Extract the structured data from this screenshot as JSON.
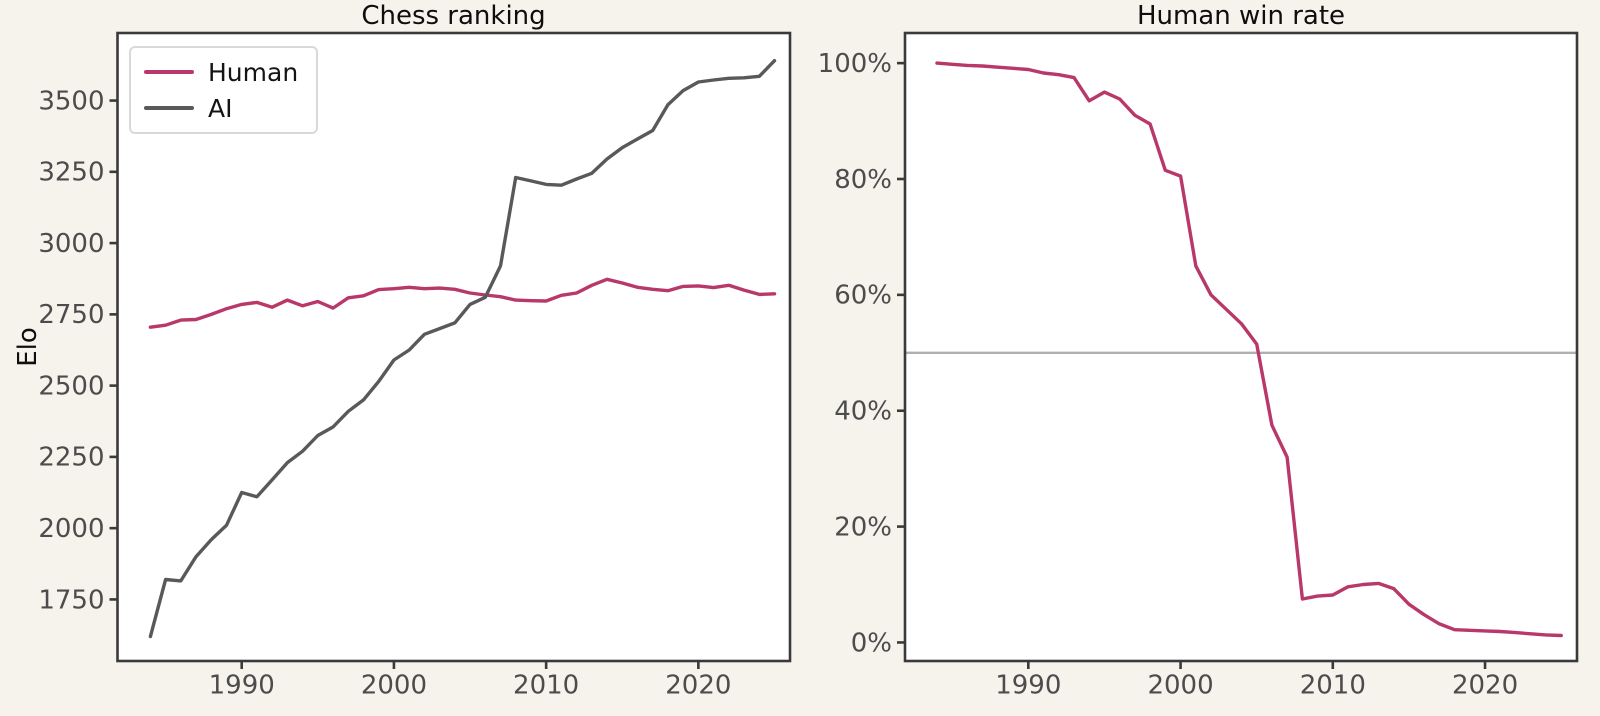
{
  "figure": {
    "background_color": "#f6f3ed",
    "plot_background_color": "#ffffff",
    "spine_color": "#3a3a3a",
    "tick_color": "#3a3a3a",
    "tick_label_color": "#4c4c4c",
    "title_color": "#0e0e0e",
    "legend": {
      "entries": [
        "Human",
        "AI"
      ],
      "text_color": "#141414",
      "border_color": "#d9d9d9",
      "background": "#ffffff",
      "position": "upper-left"
    }
  },
  "chart_data": [
    {
      "type": "line",
      "title": "Chess ranking",
      "xlabel": "",
      "ylabel": "Elo",
      "x": [
        1984,
        1985,
        1986,
        1987,
        1988,
        1989,
        1990,
        1991,
        1992,
        1993,
        1994,
        1995,
        1996,
        1997,
        1998,
        1999,
        2000,
        2001,
        2002,
        2003,
        2004,
        2005,
        2006,
        2007,
        2008,
        2009,
        2010,
        2011,
        2012,
        2013,
        2014,
        2015,
        2016,
        2017,
        2018,
        2019,
        2020,
        2021,
        2022,
        2023,
        2024,
        2025
      ],
      "series": [
        {
          "name": "Human",
          "color": "#b8386a",
          "values": [
            2705,
            2712,
            2730,
            2732,
            2750,
            2770,
            2785,
            2792,
            2775,
            2800,
            2780,
            2795,
            2772,
            2808,
            2815,
            2837,
            2840,
            2845,
            2840,
            2842,
            2838,
            2825,
            2818,
            2812,
            2800,
            2798,
            2797,
            2817,
            2825,
            2852,
            2873,
            2860,
            2845,
            2838,
            2833,
            2848,
            2850,
            2844,
            2852,
            2835,
            2820,
            2822
          ]
        },
        {
          "name": "AI",
          "color": "#595959",
          "values": [
            1620,
            1820,
            1815,
            1900,
            1960,
            2010,
            2125,
            2110,
            2170,
            2230,
            2270,
            2325,
            2355,
            2410,
            2450,
            2515,
            2590,
            2625,
            2680,
            2700,
            2720,
            2785,
            2810,
            2920,
            3230,
            3218,
            3206,
            3203,
            3225,
            3245,
            3295,
            3335,
            3365,
            3395,
            3485,
            3535,
            3565,
            3572,
            3578,
            3580,
            3585,
            3640
          ]
        }
      ],
      "xticks": [
        1990,
        2000,
        2010,
        2020
      ],
      "xticklabels": [
        "1990",
        "2000",
        "2010",
        "2020"
      ],
      "yticks": [
        1750,
        2000,
        2250,
        2500,
        2750,
        3000,
        3250,
        3500
      ],
      "yticklabels": [
        "1750",
        "2000",
        "2250",
        "2500",
        "2750",
        "3000",
        "3250",
        "3500"
      ],
      "xlim": [
        1981.84,
        2026.02
      ],
      "ylim": [
        1534,
        3737
      ],
      "grid": false,
      "legend_position": "upper-left"
    },
    {
      "type": "line",
      "title": "Human win rate",
      "xlabel": "",
      "ylabel": "",
      "x": [
        1984,
        1985,
        1986,
        1987,
        1988,
        1989,
        1990,
        1991,
        1992,
        1993,
        1994,
        1995,
        1996,
        1997,
        1998,
        1999,
        2000,
        2001,
        2002,
        2003,
        2004,
        2005,
        2006,
        2007,
        2008,
        2009,
        2010,
        2011,
        2012,
        2013,
        2014,
        2015,
        2016,
        2017,
        2018,
        2019,
        2020,
        2021,
        2022,
        2023,
        2024,
        2025
      ],
      "series": [
        {
          "name": "Human win rate",
          "color": "#b8386a",
          "values": [
            100,
            99.8,
            99.6,
            99.5,
            99.3,
            99.1,
            98.9,
            98.3,
            98.0,
            97.5,
            93.5,
            95.0,
            93.8,
            91.0,
            89.5,
            81.5,
            80.5,
            65.0,
            60.0,
            57.5,
            55.0,
            51.5,
            37.5,
            32.0,
            7.5,
            8.0,
            8.2,
            9.6,
            10.0,
            10.2,
            9.3,
            6.6,
            4.8,
            3.2,
            2.2,
            2.1,
            2.0,
            1.9,
            1.7,
            1.5,
            1.3,
            1.2
          ]
        }
      ],
      "xticks": [
        1990,
        2000,
        2010,
        2020
      ],
      "xticklabels": [
        "1990",
        "2000",
        "2010",
        "2020"
      ],
      "yticks": [
        0,
        20,
        40,
        60,
        80,
        100
      ],
      "yticklabels": [
        "0%",
        "20%",
        "40%",
        "60%",
        "80%",
        "100%"
      ],
      "xlim": [
        1981.9,
        2026.04
      ],
      "ylim": [
        -3.2,
        105.2
      ],
      "reference_line": {
        "value": 50,
        "color": "#b0b0b0"
      },
      "grid": false
    }
  ]
}
